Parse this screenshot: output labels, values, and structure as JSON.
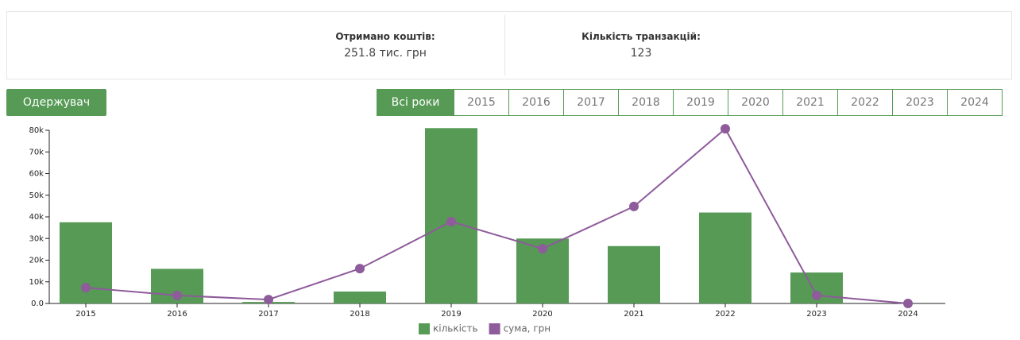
{
  "stats": [
    {
      "label": "Отримано коштів:",
      "value": "251.8 тис. грн"
    },
    {
      "label": "Кількість транзакцій:",
      "value": "123"
    }
  ],
  "button": "Одержувач",
  "tabs": [
    "Всі роки",
    "2015",
    "2016",
    "2017",
    "2018",
    "2019",
    "2020",
    "2021",
    "2022",
    "2023",
    "2024"
  ],
  "chart_data": {
    "type": "bar",
    "categories": [
      "2015",
      "2016",
      "2017",
      "2018",
      "2019",
      "2020",
      "2021",
      "2022",
      "2023",
      "2024"
    ],
    "series": [
      {
        "name": "кількість",
        "type": "bar",
        "color": "#569a56",
        "values": [
          37500,
          16000,
          700,
          5500,
          81000,
          30000,
          26500,
          42000,
          14300,
          0
        ]
      },
      {
        "name": "сума, грн",
        "type": "line",
        "color": "#8e5b9b",
        "values": [
          7300,
          3700,
          1800,
          16100,
          37800,
          25300,
          44800,
          80700,
          3700,
          0
        ]
      }
    ],
    "ylim": [
      0,
      80000
    ],
    "yticks": [
      {
        "value": 0,
        "label": "0.0"
      },
      {
        "value": 10000,
        "label": "10k"
      },
      {
        "value": 20000,
        "label": "20k"
      },
      {
        "value": 30000,
        "label": "30k"
      },
      {
        "value": 40000,
        "label": "40k"
      },
      {
        "value": 50000,
        "label": "50k"
      },
      {
        "value": 60000,
        "label": "60k"
      },
      {
        "value": 70000,
        "label": "70k"
      },
      {
        "value": 80000,
        "label": "80k"
      }
    ],
    "legend": "bottom"
  }
}
